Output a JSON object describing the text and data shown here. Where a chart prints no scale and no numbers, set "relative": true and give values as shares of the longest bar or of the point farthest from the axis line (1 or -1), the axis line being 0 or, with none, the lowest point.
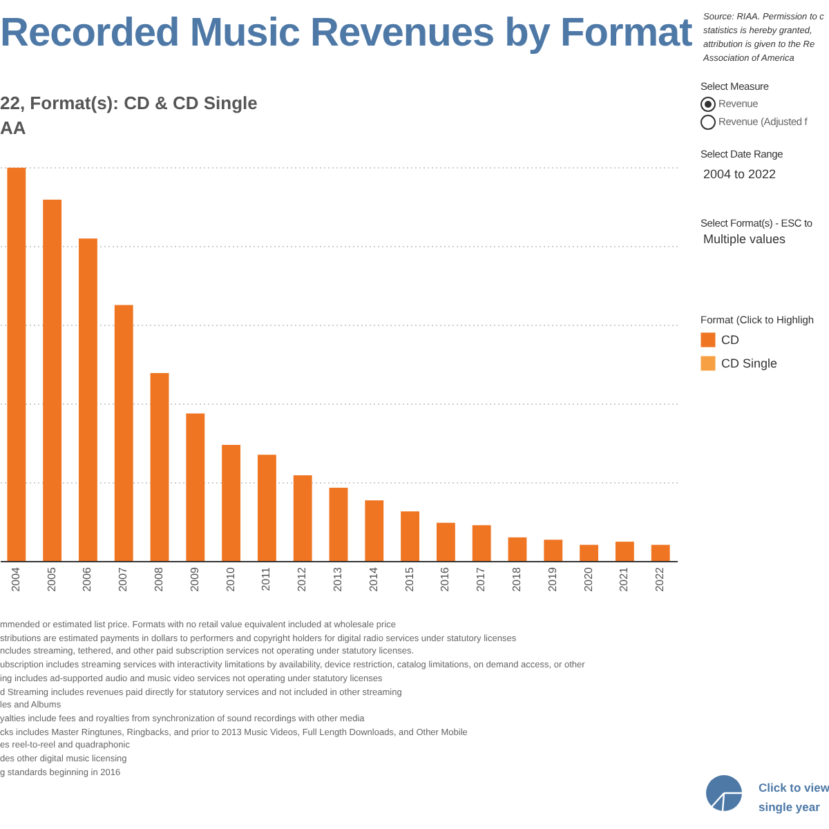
{
  "chart_data": {
    "type": "bar",
    "title": "Recorded Music Revenues by Format",
    "subtitle": "22, Format(s): CD & CD Single\nAA",
    "categories": [
      "2004",
      "2005",
      "2006",
      "2007",
      "2008",
      "2009",
      "2010",
      "2011",
      "2012",
      "2013",
      "2014",
      "2015",
      "2016",
      "2017",
      "2018",
      "2019",
      "2020",
      "2021",
      "2022"
    ],
    "series": [
      {
        "name": "CD",
        "color": "#ef7522",
        "values": [
          1,
          0.919,
          0.82,
          0.651,
          0.478,
          0.375,
          0.295,
          0.27,
          0.218,
          0.186,
          0.154,
          0.126,
          0.097,
          0.091,
          0.06,
          0.054,
          0.041,
          0.049,
          0.041
        ]
      },
      {
        "name": "CD Single",
        "color": "#f7a043",
        "values": [
          null,
          null,
          null,
          null,
          null,
          null,
          null,
          null,
          null,
          null,
          null,
          null,
          null,
          null,
          null,
          null,
          null,
          null,
          null
        ]
      }
    ],
    "relative": true,
    "grid": "y",
    "legend": "right",
    "legend_title": "Format (Click to Highligh",
    "annotations": [
      "Source: RIAA. Permission to c\nstatistics is hereby granted,\nattribution is given to the Re\nAssociation of America",
      "Select Measure",
      "Revenue",
      "Revenue (Adjusted f",
      "Select Date Range",
      "2004 to 2022",
      "Select Format(s) - ESC to",
      "Multiple values",
      "Click to view\nsingle year",
      "mmended or estimated list price. Formats with no retail value equivalent included at wholesale price",
      "stributions are estimated payments in dollars to performers and copyright holders for digital radio services under statutory licenses",
      "ncludes streaming, tethered, and other paid subscription services not operating under statutory licenses.",
      "ubscription includes streaming services with interactivity limitations by availability, device restriction, catalog limitations, on demand access, or other",
      "ing includes ad-supported audio and music video services not operating under statutory licenses",
      "d Streaming includes revenues paid directly for statutory services and not included in other streaming",
      "les and Albums",
      "yalties include fees and royalties from synchronization of sound recordings with other media",
      "cks includes Master Ringtunes, Ringbacks, and prior to 2013 Music Videos, Full Length Downloads, and Other Mobile",
      "es reel-to-reel and quadraphonic",
      "des other digital music licensing",
      "g standards beginning in 2016"
    ]
  }
}
